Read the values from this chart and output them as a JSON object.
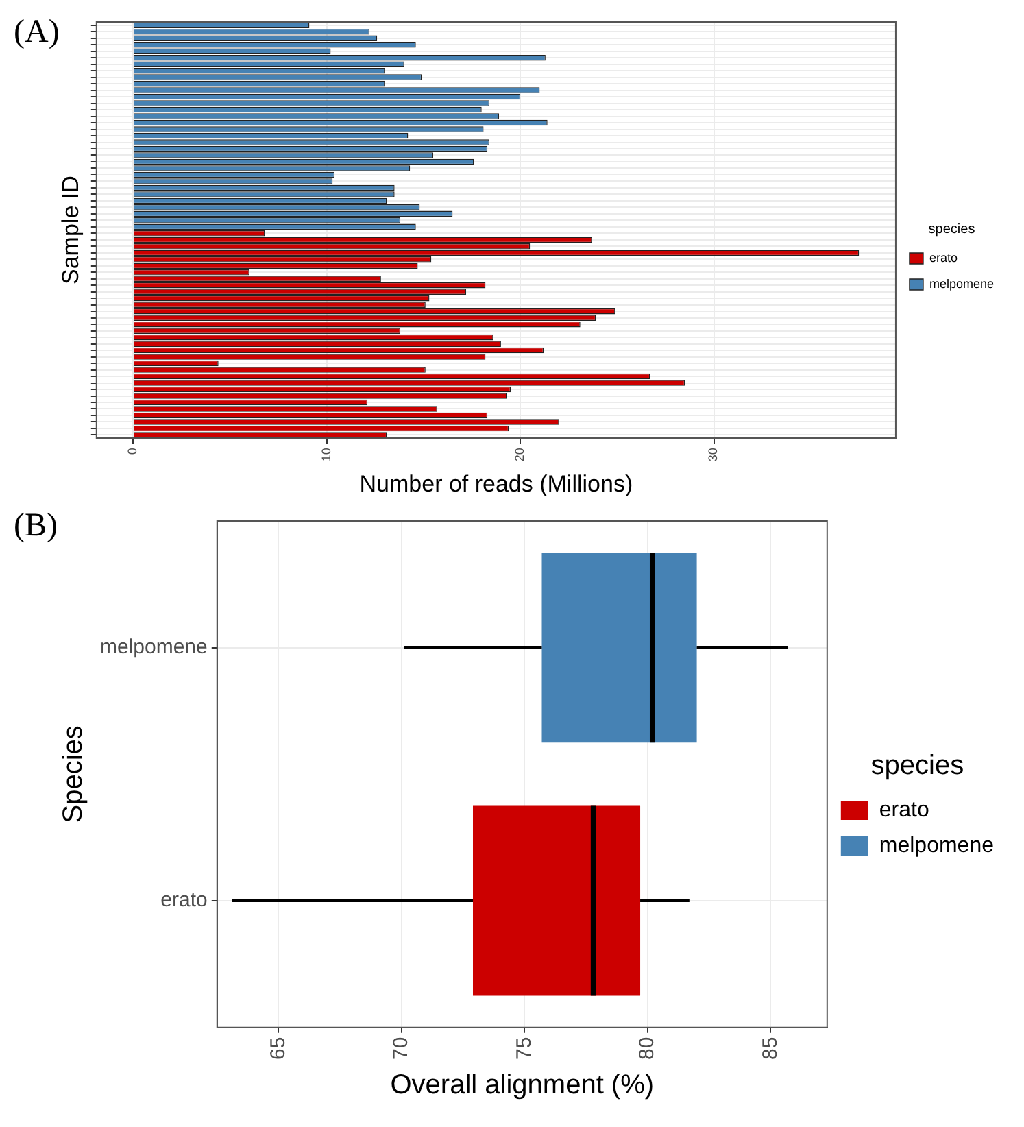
{
  "chart_data": [
    {
      "type": "bar",
      "orientation": "horizontal",
      "xlabel": "Number of reads (Millions)",
      "ylabel": "Sample ID",
      "legend_title": "species",
      "legend": "right",
      "grid": true,
      "tick_labels": "x",
      "annotations": [
        "(A)"
      ],
      "categories": [
        null,
        null,
        null,
        null,
        null,
        null,
        null,
        null,
        null,
        null,
        null,
        null,
        null,
        null,
        null,
        null,
        null,
        null,
        null,
        null,
        null,
        null,
        null,
        null,
        null,
        null,
        null,
        null,
        null,
        null,
        null,
        null,
        null,
        null,
        null,
        null,
        null,
        null,
        null,
        null,
        null,
        null,
        null,
        null,
        null,
        null,
        null,
        null,
        null,
        null,
        null,
        null,
        null,
        null,
        null,
        null,
        null,
        null,
        null,
        null,
        null,
        null,
        null,
        null
      ],
      "xlim": [
        -1.9,
        39.4
      ],
      "xticks": [
        0,
        10,
        20,
        30
      ],
      "series": [
        {
          "name": "erato",
          "color": "#cc0000",
          "values": [
            null,
            null,
            null,
            null,
            null,
            null,
            null,
            null,
            null,
            null,
            null,
            null,
            null,
            null,
            null,
            null,
            null,
            null,
            null,
            null,
            null,
            null,
            null,
            null,
            null,
            null,
            null,
            null,
            null,
            null,
            null,
            null,
            6.8,
            23.7,
            20.5,
            37.5,
            15.4,
            14.7,
            6.0,
            12.8,
            18.2,
            17.2,
            15.3,
            15.1,
            24.9,
            23.9,
            23.1,
            13.8,
            18.6,
            19.0,
            21.2,
            18.2,
            4.4,
            15.1,
            26.7,
            28.5,
            19.5,
            19.3,
            12.1,
            15.7,
            18.3,
            22.0,
            19.4,
            13.1
          ]
        },
        {
          "name": "melpomene",
          "color": "#4682b4",
          "values": [
            9.1,
            12.2,
            12.6,
            14.6,
            10.2,
            21.3,
            14.0,
            13.0,
            14.9,
            13.0,
            21.0,
            20.0,
            18.4,
            18.0,
            18.9,
            21.4,
            18.1,
            14.2,
            18.4,
            18.3,
            15.5,
            17.6,
            14.3,
            10.4,
            10.3,
            13.5,
            13.5,
            13.1,
            14.8,
            16.5,
            13.8,
            14.6,
            null,
            null,
            null,
            null,
            null,
            null,
            null,
            null,
            null,
            null,
            null,
            null,
            null,
            null,
            null,
            null,
            null,
            null,
            null,
            null,
            null,
            null,
            null,
            null,
            null,
            null,
            null,
            null,
            null,
            null,
            null,
            null
          ]
        }
      ]
    },
    {
      "type": "box",
      "orientation": "horizontal",
      "xlabel": "Overall alignment (%)",
      "ylabel": "Species",
      "legend_title": "species",
      "legend": "right",
      "grid": true,
      "annotations": [
        "(B)"
      ],
      "categories": [
        "melpomene",
        "erato"
      ],
      "xlim": [
        62.5,
        87.3
      ],
      "xticks": [
        65,
        70,
        75,
        80,
        85
      ],
      "series": [
        {
          "name": "erato",
          "color": "#cc0000",
          "boxes": [
            null,
            {
              "low": 63.1,
              "q1": 72.9,
              "median": 77.8,
              "q3": 79.7,
              "high": 81.7
            }
          ]
        },
        {
          "name": "melpomene",
          "color": "#4682b4",
          "boxes": [
            {
              "low": 70.1,
              "q1": 75.7,
              "median": 80.2,
              "q3": 82.0,
              "high": 85.7
            },
            null
          ]
        }
      ]
    }
  ]
}
